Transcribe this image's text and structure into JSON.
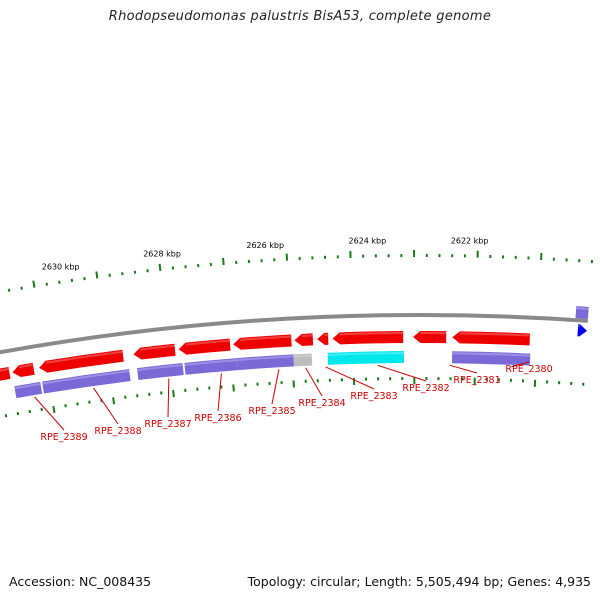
{
  "title": "Rhodopseudomonas palustris BisA53, complete genome",
  "footer": {
    "accession": "Accession: NC_008435",
    "summary": "Topology: circular; Length: 5,505,494 bp; Genes: 4,935"
  },
  "colors": {
    "backbone": "#8a8a8a",
    "gene_red": "#ee0000",
    "gene_purple": "#7a6ad8",
    "gene_cyan": "#00e8ee",
    "gene_gray": "#bdbdbd",
    "gene_blue": "#0000ee",
    "tick": "#1a7a1a",
    "label": "#cc0000"
  },
  "kbp_labels": [
    {
      "text": "2630 kbp",
      "t": 0.165
    },
    {
      "text": "2628 kbp",
      "t": 0.325
    },
    {
      "text": "2626 kbp",
      "t": 0.487
    },
    {
      "text": "2624 kbp",
      "t": 0.647
    },
    {
      "text": "2622 kbp",
      "t": 0.807
    }
  ],
  "genes": [
    {
      "label": "RPE_2389"
    },
    {
      "label": "RPE_2388"
    },
    {
      "label": "RPE_2387"
    },
    {
      "label": "RPE_2386"
    },
    {
      "label": "RPE_2385"
    },
    {
      "label": "RPE_2384"
    },
    {
      "label": "RPE_2383"
    },
    {
      "label": "RPE_2382"
    },
    {
      "label": "RPE_2381"
    },
    {
      "label": "RPE_2380"
    }
  ]
}
